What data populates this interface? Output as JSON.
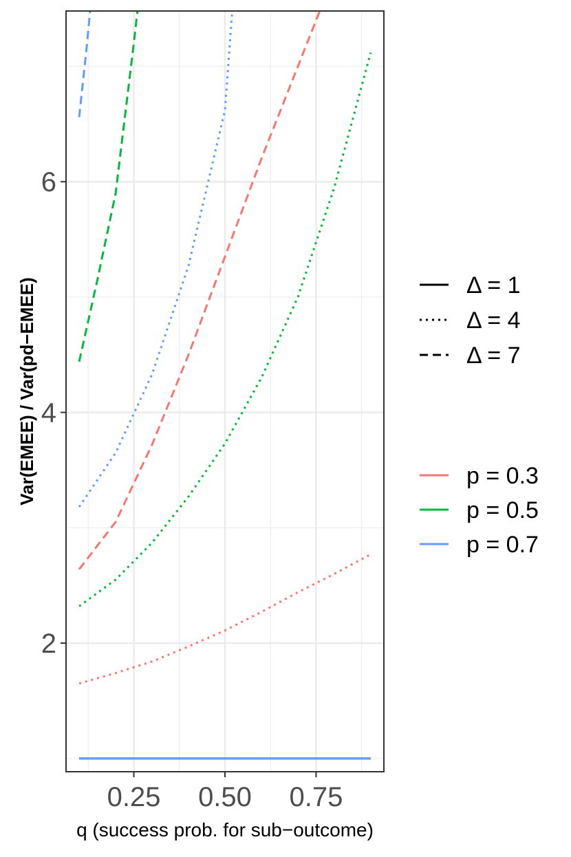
{
  "chart_data": {
    "type": "line",
    "xlabel": "q (success prob. for sub−outcome)",
    "ylabel": "Var(EMEE) / Var(pd−EMEE)",
    "xlim": [
      0.064,
      0.936
    ],
    "ylim": [
      0.885,
      7.48
    ],
    "x_ticks": [
      0.25,
      0.5,
      0.75
    ],
    "x_tick_labels": [
      "0.25",
      "0.50",
      "0.75"
    ],
    "x_minor": [
      0.125,
      0.375,
      0.625,
      0.875
    ],
    "y_ticks": [
      2,
      4,
      6
    ],
    "y_tick_labels": [
      "2",
      "4",
      "6"
    ],
    "y_minor": [
      1,
      3,
      5,
      7
    ],
    "grid": true,
    "legend_position": "right",
    "linetype_legend": [
      {
        "label": "Δ = 1",
        "dash": "solid"
      },
      {
        "label": "Δ = 4",
        "dash": "dotted"
      },
      {
        "label": "Δ = 7",
        "dash": "dashed"
      }
    ],
    "color_legend": [
      {
        "label": "p = 0.3",
        "color": "#F8766D"
      },
      {
        "label": "p = 0.5",
        "color": "#00BA38"
      },
      {
        "label": "p = 0.7",
        "color": "#619CFF"
      }
    ],
    "series": [
      {
        "p": "0.3",
        "delta": "1",
        "color": "#F8766D",
        "dash": "solid",
        "x": [
          0.1,
          0.9
        ],
        "y": [
          1.0,
          1.0
        ]
      },
      {
        "p": "0.5",
        "delta": "1",
        "color": "#00BA38",
        "dash": "solid",
        "x": [
          0.1,
          0.9
        ],
        "y": [
          1.0,
          1.0
        ]
      },
      {
        "p": "0.7",
        "delta": "1",
        "color": "#619CFF",
        "dash": "solid",
        "x": [
          0.1,
          0.9
        ],
        "y": [
          1.0,
          1.0
        ]
      },
      {
        "p": "0.3",
        "delta": "4",
        "color": "#F8766D",
        "dash": "dotted",
        "x": [
          0.1,
          0.2,
          0.3,
          0.4,
          0.5,
          0.6,
          0.7,
          0.8,
          0.9
        ],
        "y": [
          1.65,
          1.74,
          1.84,
          1.97,
          2.11,
          2.27,
          2.44,
          2.6,
          2.77
        ]
      },
      {
        "p": "0.5",
        "delta": "4",
        "color": "#00BA38",
        "dash": "dotted",
        "x": [
          0.1,
          0.2,
          0.3,
          0.4,
          0.5,
          0.6,
          0.7,
          0.8,
          0.9
        ],
        "y": [
          2.32,
          2.55,
          2.87,
          3.27,
          3.73,
          4.3,
          5.0,
          5.95,
          7.12
        ]
      },
      {
        "p": "0.7",
        "delta": "4",
        "color": "#619CFF",
        "dash": "dotted",
        "x": [
          0.1,
          0.2,
          0.3,
          0.4,
          0.5,
          0.52
        ],
        "y": [
          3.18,
          3.65,
          4.33,
          5.27,
          6.62,
          7.48
        ]
      },
      {
        "p": "0.3",
        "delta": "7",
        "color": "#F8766D",
        "dash": "dashed",
        "x": [
          0.1,
          0.2,
          0.3,
          0.4,
          0.5,
          0.6,
          0.7,
          0.76
        ],
        "y": [
          2.64,
          3.05,
          3.72,
          4.5,
          5.35,
          6.2,
          7.0,
          7.48
        ]
      },
      {
        "p": "0.5",
        "delta": "7",
        "color": "#00BA38",
        "dash": "dashed",
        "x": [
          0.1,
          0.15,
          0.2,
          0.25,
          0.26
        ],
        "y": [
          4.44,
          5.15,
          5.9,
          7.2,
          7.48
        ]
      },
      {
        "p": "0.7",
        "delta": "7",
        "color": "#619CFF",
        "dash": "dashed",
        "x": [
          0.1,
          0.12,
          0.13
        ],
        "y": [
          6.56,
          7.15,
          7.48
        ]
      }
    ]
  }
}
